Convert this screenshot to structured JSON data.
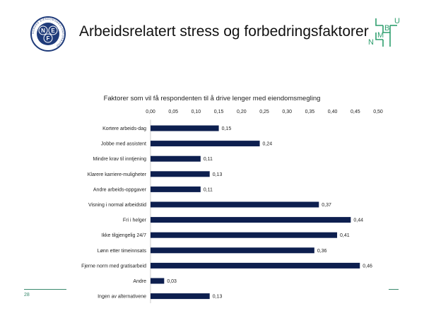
{
  "slide": {
    "title": "Arbeidsrelatert stress og forbedringsfaktorer",
    "page_number": "28"
  },
  "logos": {
    "left_logo": {
      "ring_text": "NORGES EIENDOMSMEGLERFORBUND",
      "center_letters": [
        "N",
        "E",
        "F"
      ]
    },
    "right_logo": {
      "letters": [
        "N",
        "M",
        "B",
        "U"
      ],
      "color": "#2e9e6e"
    }
  },
  "chart_data": {
    "type": "bar",
    "orientation": "horizontal",
    "title": "Faktorer som vil få respondenten til å drive lenger med eiendomsmegling",
    "categories": [
      "Kortere arbeids-dag",
      "Jobbe med assistent",
      "Mindre krav til inntjening",
      "Klarere karriere-muligheter",
      "Andre arbeids-oppgaver",
      "Visning i normal arbeidstid",
      "Fri i helger",
      "Ikke tilgjengelig 24/7",
      "Lønn etter timeinnsats",
      "Fjerne norm med gratisarbeid",
      "Andre",
      "Ingen av alternativene"
    ],
    "values": [
      0.15,
      0.24,
      0.11,
      0.13,
      0.11,
      0.37,
      0.44,
      0.41,
      0.36,
      0.46,
      0.03,
      0.13
    ],
    "value_labels": [
      "0,15",
      "0,24",
      "0,11",
      "0,13",
      "0,11",
      "0,37",
      "0,44",
      "0,41",
      "0,36",
      "0,46",
      "0,03",
      "0,13"
    ],
    "xlim": [
      0,
      0.5
    ],
    "x_ticks": [
      "0,00",
      "0,05",
      "0,10",
      "0,15",
      "0,20",
      "0,25",
      "0,30",
      "0,35",
      "0,40",
      "0,45",
      "0,50"
    ],
    "x_axis_position": "top",
    "grid": false,
    "bar_color": "#0d1f4f"
  }
}
